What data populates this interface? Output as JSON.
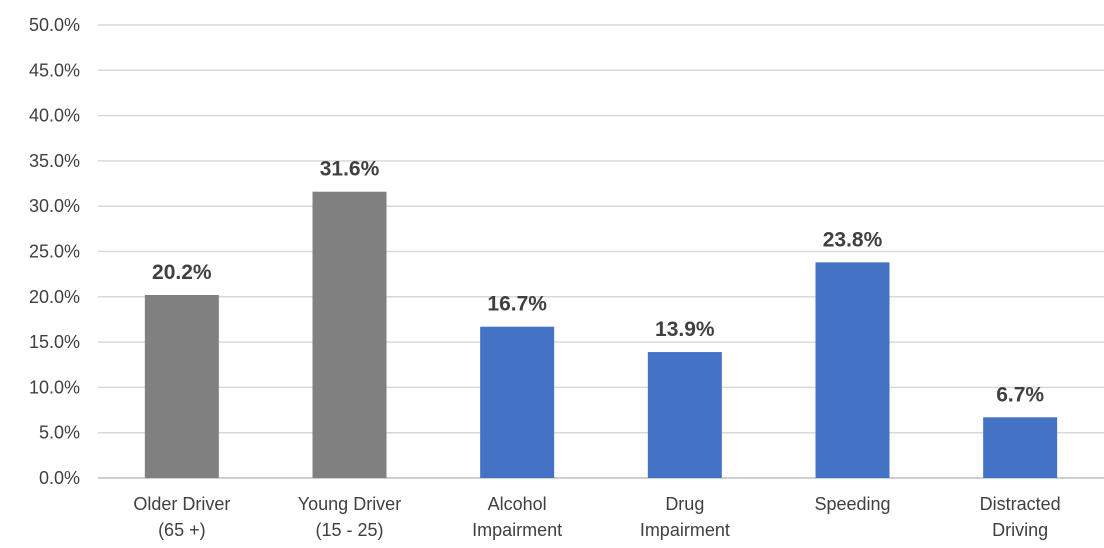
{
  "chart_data": {
    "type": "bar",
    "categories": [
      [
        "Older Driver",
        "(65 +)"
      ],
      [
        "Young Driver",
        "(15 - 25)"
      ],
      [
        "Alcohol",
        "Impairment"
      ],
      [
        "Drug",
        "Impairment"
      ],
      [
        "Speeding"
      ],
      [
        "Distracted",
        "Driving"
      ]
    ],
    "values": [
      20.2,
      31.6,
      16.7,
      13.9,
      23.8,
      6.7
    ],
    "value_labels": [
      "20.2%",
      "31.6%",
      "16.7%",
      "13.9%",
      "23.8%",
      "6.7%"
    ],
    "bar_colors": [
      "#808080",
      "#808080",
      "#4472c4",
      "#4472c4",
      "#4472c4",
      "#4472c4"
    ],
    "ylim": [
      0,
      50
    ],
    "yticks": [
      0,
      5,
      10,
      15,
      20,
      25,
      30,
      35,
      40,
      45,
      50
    ],
    "ytick_labels": [
      "0.0%",
      "5.0%",
      "10.0%",
      "15.0%",
      "20.0%",
      "25.0%",
      "30.0%",
      "35.0%",
      "40.0%",
      "45.0%",
      "50.0%"
    ],
    "grid": true,
    "legend": "none"
  }
}
